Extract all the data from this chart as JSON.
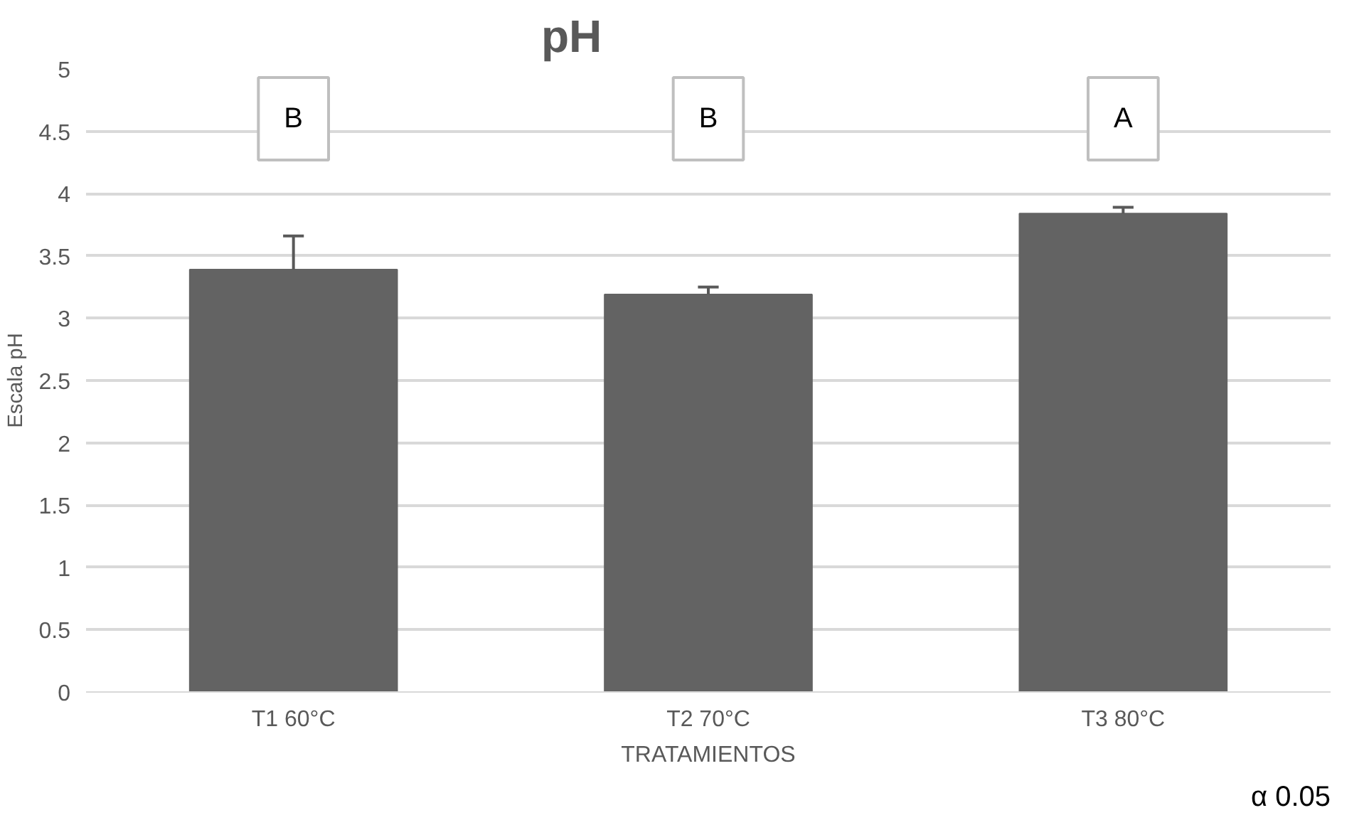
{
  "chart_data": {
    "type": "bar",
    "title": "pH",
    "xlabel": "TRATAMIENTOS",
    "ylabel": "Escala pH",
    "categories": [
      "T1 60°C",
      "T2 70°C",
      "T3 80°C"
    ],
    "values": [
      3.39,
      3.19,
      3.84
    ],
    "color": "#636363",
    "errors": [
      [
        3.39,
        3.66
      ],
      [
        3.19,
        3.25
      ],
      [
        3.84,
        3.89
      ]
    ],
    "ylim": [
      0,
      5
    ],
    "yticks": [
      0,
      0.5,
      1,
      1.5,
      2,
      2.5,
      3,
      3.5,
      4,
      4.5,
      5
    ],
    "grid": "y",
    "annotations": [
      "B",
      "B",
      "A",
      "α 0.05"
    ]
  }
}
